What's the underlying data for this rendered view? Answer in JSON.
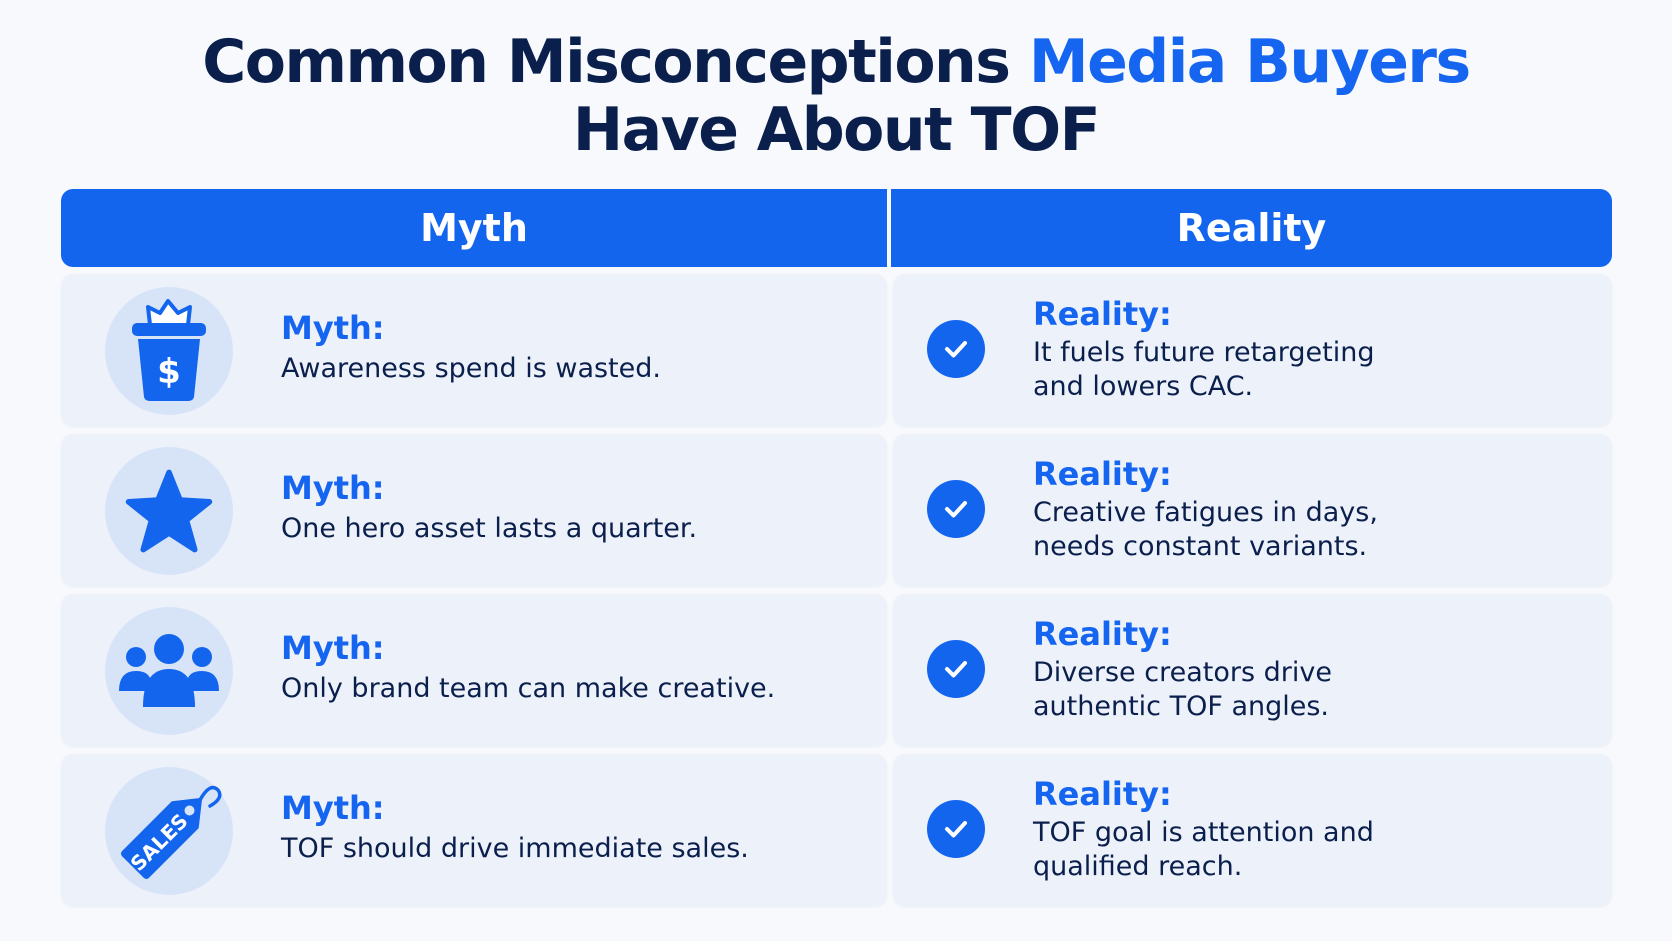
{
  "title": {
    "part1": "Common Misconceptions ",
    "accent": "Media Buyers",
    "line2": "Have About TOF"
  },
  "header": {
    "myth": "Myth",
    "reality": "Reality"
  },
  "rows": [
    {
      "icon": "money-bin-icon",
      "myth_label": "Myth:",
      "myth_text": "Awareness spend is wasted.",
      "reality_label": "Reality:",
      "reality_line1": "It fuels future retargeting",
      "reality_line2": "and lowers CAC."
    },
    {
      "icon": "star-icon",
      "myth_label": "Myth:",
      "myth_text": "One hero asset lasts a quarter.",
      "reality_label": "Reality:",
      "reality_line1": "Creative fatigues in days,",
      "reality_line2": "needs constant variants."
    },
    {
      "icon": "people-group-icon",
      "myth_label": "Myth:",
      "myth_text": "Only brand team can make creative.",
      "reality_label": "Reality:",
      "reality_line1": "Diverse creators drive",
      "reality_line2": "authentic TOF angles."
    },
    {
      "icon": "sales-tag-icon",
      "icon_text": "SALES",
      "myth_label": "Myth:",
      "myth_text": "TOF should drive immediate sales.",
      "reality_label": "Reality:",
      "reality_line1": "TOF goal is attention and",
      "reality_line2": "qualified reach."
    }
  ],
  "colors": {
    "accent": "#1565f0",
    "header_bg": "#1465ee",
    "title_dark": "#0b1f4d",
    "cell_bg": "#edf2fa",
    "icon_circle": "#d7e4f8"
  }
}
